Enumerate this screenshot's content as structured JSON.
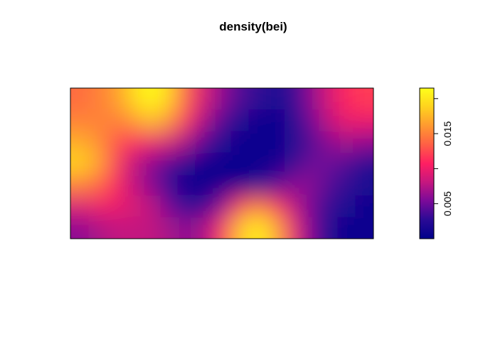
{
  "chart_data": {
    "type": "heatmap",
    "title": "density(bei)",
    "xlabel": "",
    "ylabel": "",
    "legend": "right",
    "colorbar": {
      "min": 0.0,
      "max": 0.0215,
      "ticks": [
        0.005,
        0.01,
        0.015,
        0.02
      ],
      "tick_labels": [
        "0.005",
        "",
        "0.015",
        ""
      ],
      "colors": [
        "#00008b",
        "#2a0a95",
        "#7a0a99",
        "#c5177f",
        "#ff1f62",
        "#ff5f45",
        "#ff9930",
        "#ffd21e",
        "#ffff1a"
      ]
    },
    "grid_values": [
      [
        0.014,
        0.015,
        0.016,
        0.019,
        0.0215,
        0.019,
        0.013,
        0.009,
        0.006,
        0.004,
        0.003,
        0.002,
        0.003,
        0.006,
        0.009,
        0.011,
        0.012
      ],
      [
        0.015,
        0.015,
        0.015,
        0.016,
        0.018,
        0.016,
        0.011,
        0.007,
        0.004,
        0.002,
        0.001,
        0.001,
        0.002,
        0.005,
        0.008,
        0.01,
        0.01
      ],
      [
        0.017,
        0.016,
        0.013,
        0.011,
        0.01,
        0.009,
        0.007,
        0.004,
        0.002,
        0.001,
        0.001,
        0.001,
        0.002,
        0.004,
        0.006,
        0.007,
        0.006
      ],
      [
        0.019,
        0.017,
        0.012,
        0.008,
        0.006,
        0.004,
        0.002,
        0.001,
        0.001,
        0.001,
        0.001,
        0.001,
        0.003,
        0.005,
        0.005,
        0.004,
        0.002
      ],
      [
        0.015,
        0.014,
        0.011,
        0.008,
        0.006,
        0.003,
        0.001,
        0.001,
        0.001,
        0.001,
        0.002,
        0.004,
        0.006,
        0.006,
        0.004,
        0.003,
        0.002
      ],
      [
        0.009,
        0.01,
        0.01,
        0.009,
        0.008,
        0.005,
        0.003,
        0.003,
        0.006,
        0.012,
        0.015,
        0.012,
        0.008,
        0.005,
        0.003,
        0.002,
        0.001
      ],
      [
        0.006,
        0.007,
        0.008,
        0.008,
        0.008,
        0.007,
        0.006,
        0.007,
        0.011,
        0.018,
        0.021,
        0.017,
        0.01,
        0.005,
        0.002,
        0.001,
        0.001
      ]
    ]
  }
}
